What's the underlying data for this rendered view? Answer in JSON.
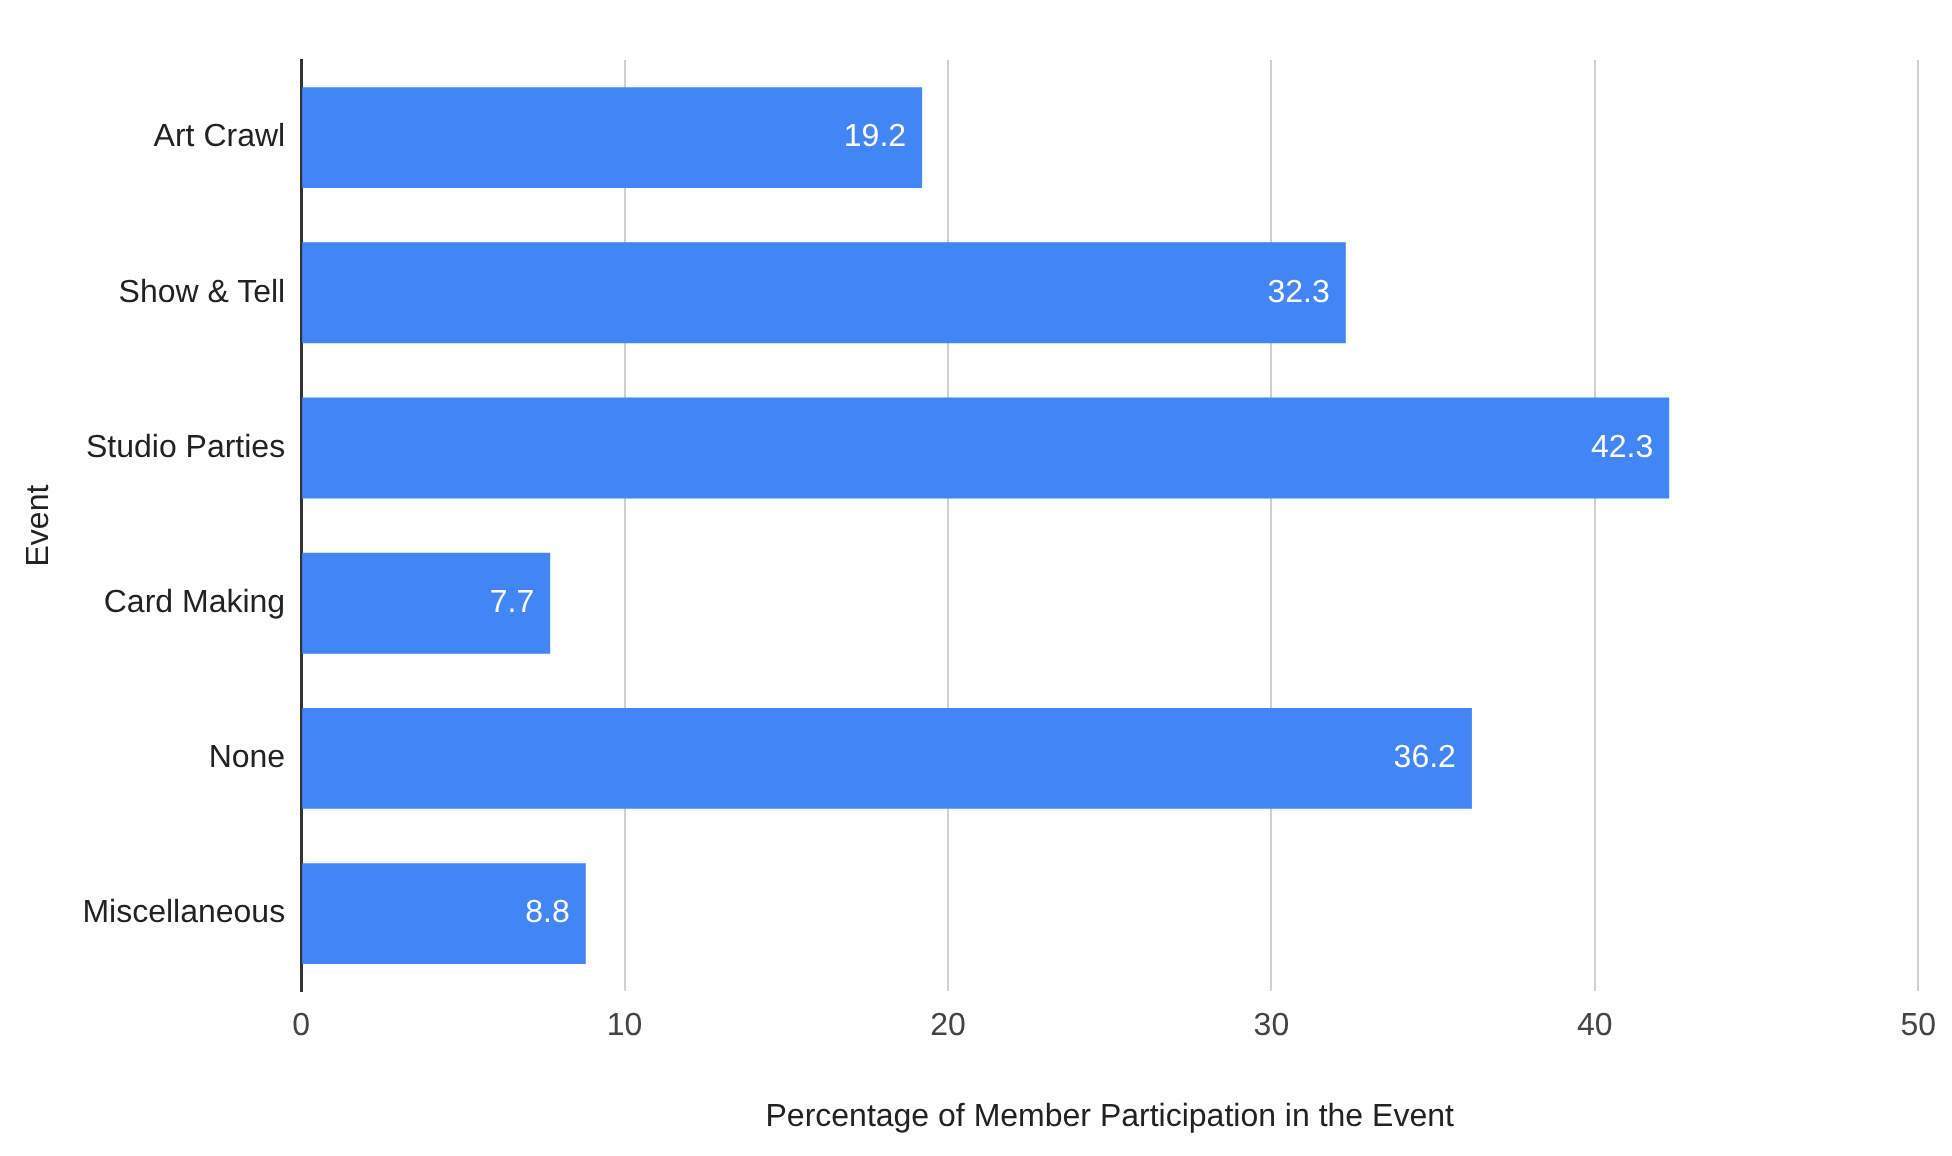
{
  "chart_data": {
    "type": "bar",
    "orientation": "horizontal",
    "xlabel": "Percentage of Member Participation in the Event",
    "ylabel": "Event",
    "categories": [
      "Art Crawl",
      "Show & Tell",
      "Studio Parties",
      "Card Making",
      "None",
      "Miscellaneous"
    ],
    "values": [
      19.2,
      32.3,
      42.3,
      7.7,
      36.2,
      8.8
    ],
    "color": "#4285f4",
    "xlim": [
      0,
      50
    ],
    "xticks": [
      0,
      10,
      20,
      30,
      40,
      50
    ],
    "grid": "x",
    "data_labels": true,
    "legend": false
  }
}
